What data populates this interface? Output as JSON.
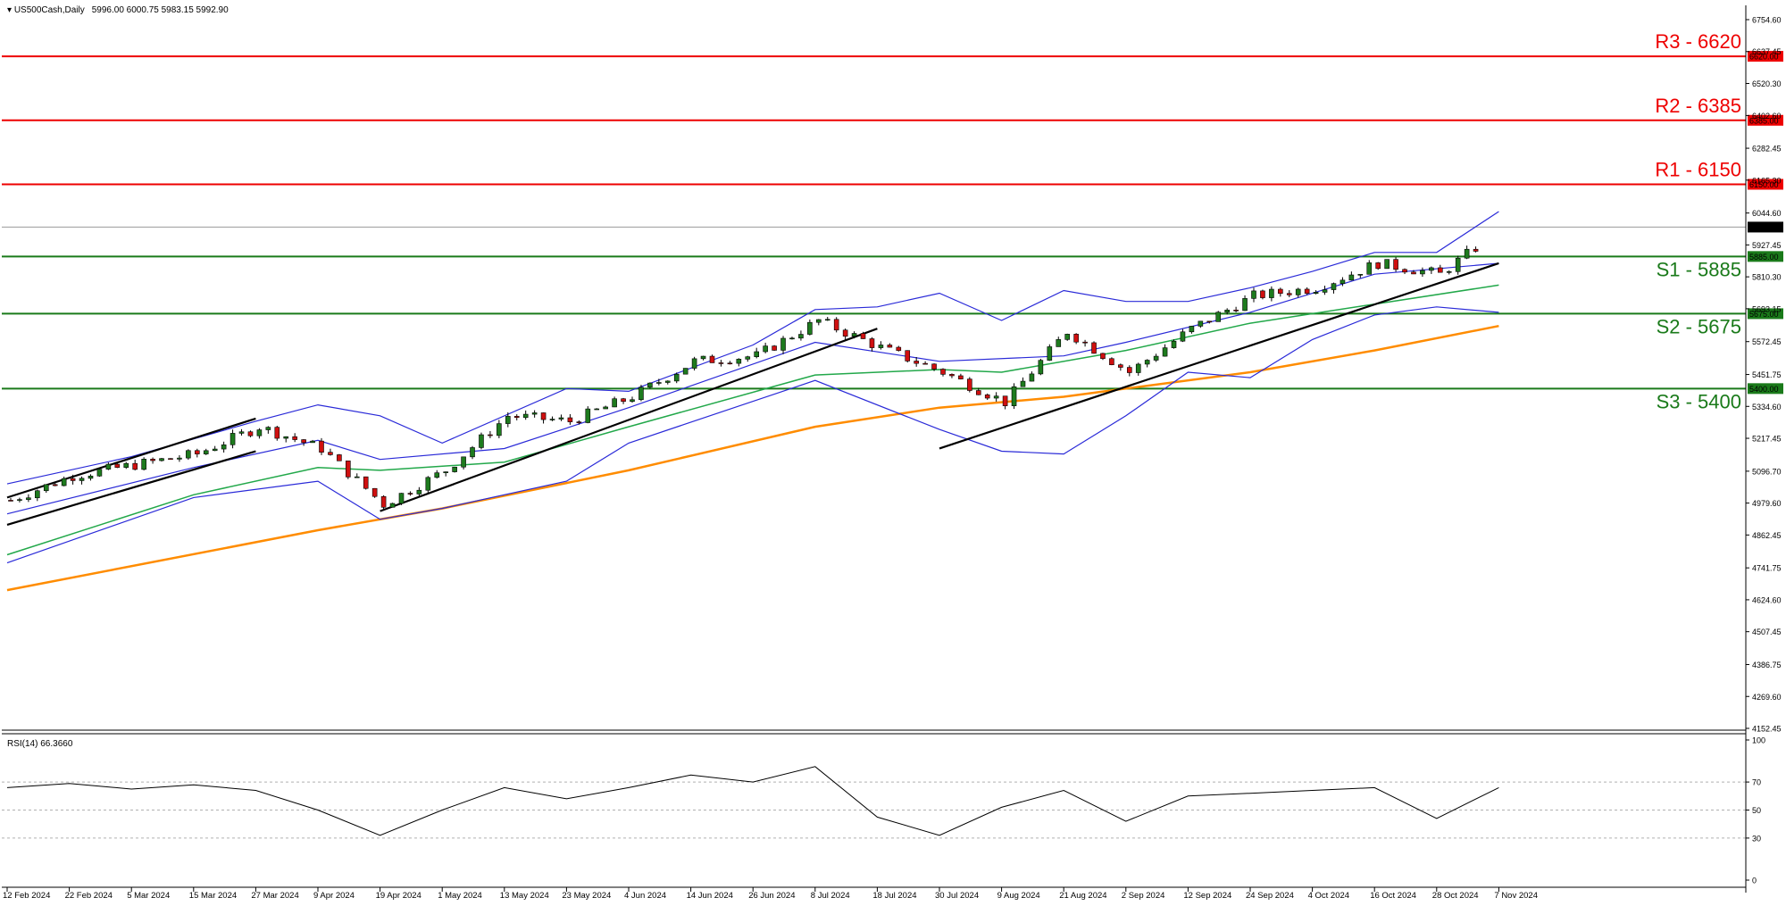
{
  "header": {
    "symbol_line": "US500Cash,Daily",
    "ohlc": "5996.00 6000.75 5983.15 5992.90"
  },
  "rsi_label": "RSI(14) 66.3660",
  "colors": {
    "candle_up": "#1e7b1e",
    "candle_down": "#d01010",
    "bb": "#2a2ad8",
    "ma50": "#22a84a",
    "ma200": "#ff8c00",
    "resistance": "#ee0000",
    "support": "#1a7a1a",
    "trend": "#000000",
    "rsi": "#000000"
  },
  "chart_data": {
    "type": "candlestick",
    "instrument": "US500Cash",
    "timeframe": "Daily",
    "last_price": 5992.9,
    "y_range": [
      4152.45,
      6754.6
    ],
    "y_ticks": [
      "6754.60",
      "6637.45",
      "6520.30",
      "6402.60",
      "6282.45",
      "6165.30",
      "6044.60",
      "5927.45",
      "5810.30",
      "5693.15",
      "5572.45",
      "5451.75",
      "5334.60",
      "5217.45",
      "5096.70",
      "4979.60",
      "4862.45",
      "4741.75",
      "4624.60",
      "4507.45",
      "4386.75",
      "4269.60",
      "4152.45"
    ],
    "x_labels": [
      "12 Feb 2024",
      "22 Feb 2024",
      "5 Mar 2024",
      "15 Mar 2024",
      "27 Mar 2024",
      "9 Apr 2024",
      "19 Apr 2024",
      "1 May 2024",
      "13 May 2024",
      "23 May 2024",
      "4 Jun 2024",
      "14 Jun 2024",
      "26 Jun 2024",
      "8 Jul 2024",
      "18 Jul 2024",
      "30 Jul 2024",
      "9 Aug 2024",
      "21 Aug 2024",
      "2 Sep 2024",
      "12 Sep 2024",
      "24 Sep 2024",
      "4 Oct 2024",
      "16 Oct 2024",
      "28 Oct 2024",
      "7 Nov 2024"
    ],
    "close_path": [
      {
        "d": "12 Feb 2024",
        "c": 4990
      },
      {
        "d": "22 Feb 2024",
        "c": 5080
      },
      {
        "d": "5 Mar 2024",
        "c": 5120
      },
      {
        "d": "15 Mar 2024",
        "c": 5160
      },
      {
        "d": "27 Mar 2024",
        "c": 5260
      },
      {
        "d": "9 Apr 2024",
        "c": 5180
      },
      {
        "d": "19 Apr 2024",
        "c": 4975
      },
      {
        "d": "1 May 2024",
        "c": 5100
      },
      {
        "d": "13 May 2024",
        "c": 5300
      },
      {
        "d": "23 May 2024",
        "c": 5280
      },
      {
        "d": "4 Jun 2024",
        "c": 5370
      },
      {
        "d": "14 Jun 2024",
        "c": 5500
      },
      {
        "d": "26 Jun 2024",
        "c": 5520
      },
      {
        "d": "8 Jul 2024",
        "c": 5650
      },
      {
        "d": "18 Jul 2024",
        "c": 5550
      },
      {
        "d": "30 Jul 2024",
        "c": 5460
      },
      {
        "d": "9 Aug 2024",
        "c": 5350
      },
      {
        "d": "21 Aug 2024",
        "c": 5610
      },
      {
        "d": "2 Sep 2024",
        "c": 5460
      },
      {
        "d": "12 Sep 2024",
        "c": 5620
      },
      {
        "d": "24 Sep 2024",
        "c": 5740
      },
      {
        "d": "4 Oct 2024",
        "c": 5770
      },
      {
        "d": "16 Oct 2024",
        "c": 5860
      },
      {
        "d": "28 Oct 2024",
        "c": 5820
      },
      {
        "d": "7 Nov 2024",
        "c": 5990
      }
    ],
    "levels": [
      {
        "name": "R3",
        "price": 6620,
        "label": "R3 - 6620",
        "tag": "6620.00",
        "kind": "resistance"
      },
      {
        "name": "R2",
        "price": 6385,
        "label": "R2 - 6385",
        "tag": "6385.00",
        "kind": "resistance"
      },
      {
        "name": "R1",
        "price": 6150,
        "label": "R1 - 6150",
        "tag": "6150.00",
        "kind": "resistance"
      },
      {
        "name": "S1",
        "price": 5885,
        "label": "S1 - 5885",
        "tag": "5885.00",
        "kind": "support"
      },
      {
        "name": "S2",
        "price": 5675,
        "label": "S2 - 5675",
        "tag": "5675.00",
        "kind": "support"
      },
      {
        "name": "S3",
        "price": 5400,
        "label": "S3 - 5400",
        "tag": "5400.00",
        "kind": "support"
      }
    ],
    "last_price_tag": "5992.90",
    "ma200": [
      {
        "d": "12 Feb 2024",
        "v": 4660
      },
      {
        "d": "9 Apr 2024",
        "v": 4880
      },
      {
        "d": "1 May 2024",
        "v": 4960
      },
      {
        "d": "4 Jun 2024",
        "v": 5100
      },
      {
        "d": "8 Jul 2024",
        "v": 5260
      },
      {
        "d": "30 Jul 2024",
        "v": 5330
      },
      {
        "d": "21 Aug 2024",
        "v": 5370
      },
      {
        "d": "2 Sep 2024",
        "v": 5400
      },
      {
        "d": "24 Sep 2024",
        "v": 5460
      },
      {
        "d": "16 Oct 2024",
        "v": 5540
      },
      {
        "d": "7 Nov 2024",
        "v": 5630
      }
    ],
    "ma50": [
      {
        "d": "12 Feb 2024",
        "v": 4790
      },
      {
        "d": "15 Mar 2024",
        "v": 5010
      },
      {
        "d": "9 Apr 2024",
        "v": 5110
      },
      {
        "d": "19 Apr 2024",
        "v": 5100
      },
      {
        "d": "13 May 2024",
        "v": 5130
      },
      {
        "d": "4 Jun 2024",
        "v": 5260
      },
      {
        "d": "8 Jul 2024",
        "v": 5450
      },
      {
        "d": "30 Jul 2024",
        "v": 5470
      },
      {
        "d": "9 Aug 2024",
        "v": 5460
      },
      {
        "d": "2 Sep 2024",
        "v": 5540
      },
      {
        "d": "24 Sep 2024",
        "v": 5640
      },
      {
        "d": "16 Oct 2024",
        "v": 5710
      },
      {
        "d": "7 Nov 2024",
        "v": 5780
      }
    ],
    "bb_upper": [
      {
        "d": "12 Feb 2024",
        "v": 5050
      },
      {
        "d": "5 Mar 2024",
        "v": 5150
      },
      {
        "d": "27 Mar 2024",
        "v": 5280
      },
      {
        "d": "9 Apr 2024",
        "v": 5340
      },
      {
        "d": "19 Apr 2024",
        "v": 5300
      },
      {
        "d": "1 May 2024",
        "v": 5200
      },
      {
        "d": "23 May 2024",
        "v": 5400
      },
      {
        "d": "4 Jun 2024",
        "v": 5390
      },
      {
        "d": "26 Jun 2024",
        "v": 5560
      },
      {
        "d": "8 Jul 2024",
        "v": 5690
      },
      {
        "d": "18 Jul 2024",
        "v": 5700
      },
      {
        "d": "30 Jul 2024",
        "v": 5750
      },
      {
        "d": "9 Aug 2024",
        "v": 5650
      },
      {
        "d": "21 Aug 2024",
        "v": 5760
      },
      {
        "d": "2 Sep 2024",
        "v": 5720
      },
      {
        "d": "12 Sep 2024",
        "v": 5720
      },
      {
        "d": "24 Sep 2024",
        "v": 5770
      },
      {
        "d": "4 Oct 2024",
        "v": 5830
      },
      {
        "d": "16 Oct 2024",
        "v": 5900
      },
      {
        "d": "28 Oct 2024",
        "v": 5900
      },
      {
        "d": "7 Nov 2024",
        "v": 6050
      }
    ],
    "bb_middle": [
      {
        "d": "12 Feb 2024",
        "v": 4940
      },
      {
        "d": "15 Mar 2024",
        "v": 5110
      },
      {
        "d": "9 Apr 2024",
        "v": 5210
      },
      {
        "d": "19 Apr 2024",
        "v": 5140
      },
      {
        "d": "13 May 2024",
        "v": 5180
      },
      {
        "d": "4 Jun 2024",
        "v": 5330
      },
      {
        "d": "8 Jul 2024",
        "v": 5570
      },
      {
        "d": "30 Jul 2024",
        "v": 5500
      },
      {
        "d": "21 Aug 2024",
        "v": 5520
      },
      {
        "d": "2 Sep 2024",
        "v": 5570
      },
      {
        "d": "24 Sep 2024",
        "v": 5680
      },
      {
        "d": "16 Oct 2024",
        "v": 5820
      },
      {
        "d": "7 Nov 2024",
        "v": 5860
      }
    ],
    "bb_lower": [
      {
        "d": "12 Feb 2024",
        "v": 4760
      },
      {
        "d": "15 Mar 2024",
        "v": 5000
      },
      {
        "d": "9 Apr 2024",
        "v": 5060
      },
      {
        "d": "19 Apr 2024",
        "v": 4920
      },
      {
        "d": "1 May 2024",
        "v": 4960
      },
      {
        "d": "23 May 2024",
        "v": 5060
      },
      {
        "d": "4 Jun 2024",
        "v": 5200
      },
      {
        "d": "8 Jul 2024",
        "v": 5430
      },
      {
        "d": "30 Jul 2024",
        "v": 5250
      },
      {
        "d": "9 Aug 2024",
        "v": 5170
      },
      {
        "d": "21 Aug 2024",
        "v": 5160
      },
      {
        "d": "2 Sep 2024",
        "v": 5300
      },
      {
        "d": "12 Sep 2024",
        "v": 5460
      },
      {
        "d": "24 Sep 2024",
        "v": 5440
      },
      {
        "d": "4 Oct 2024",
        "v": 5580
      },
      {
        "d": "16 Oct 2024",
        "v": 5670
      },
      {
        "d": "28 Oct 2024",
        "v": 5700
      },
      {
        "d": "7 Nov 2024",
        "v": 5680
      }
    ],
    "trendlines": [
      {
        "from": {
          "d": "12 Feb 2024",
          "v": 5000
        },
        "to": {
          "d": "27 Mar 2024",
          "v": 5290
        }
      },
      {
        "from": {
          "d": "12 Feb 2024",
          "v": 4900
        },
        "to": {
          "d": "27 Mar 2024",
          "v": 5170
        }
      },
      {
        "from": {
          "d": "19 Apr 2024",
          "v": 4950
        },
        "to": {
          "d": "18 Jul 2024",
          "v": 5620
        }
      },
      {
        "from": {
          "d": "30 Jul 2024",
          "v": 5180
        },
        "to": {
          "d": "7 Nov 2024",
          "v": 5860
        }
      }
    ],
    "rsi": {
      "period": 14,
      "current": 66.366,
      "y_ticks": [
        0,
        30,
        50,
        70,
        100
      ],
      "dashed_levels": [
        30,
        50,
        70
      ],
      "values": [
        {
          "d": "12 Feb 2024",
          "v": 66
        },
        {
          "d": "22 Feb 2024",
          "v": 69
        },
        {
          "d": "5 Mar 2024",
          "v": 65
        },
        {
          "d": "15 Mar 2024",
          "v": 68
        },
        {
          "d": "27 Mar 2024",
          "v": 64
        },
        {
          "d": "9 Apr 2024",
          "v": 50
        },
        {
          "d": "19 Apr 2024",
          "v": 32
        },
        {
          "d": "1 May 2024",
          "v": 50
        },
        {
          "d": "13 May 2024",
          "v": 66
        },
        {
          "d": "23 May 2024",
          "v": 58
        },
        {
          "d": "4 Jun 2024",
          "v": 66
        },
        {
          "d": "14 Jun 2024",
          "v": 75
        },
        {
          "d": "26 Jun 2024",
          "v": 70
        },
        {
          "d": "8 Jul 2024",
          "v": 81
        },
        {
          "d": "18 Jul 2024",
          "v": 45
        },
        {
          "d": "30 Jul 2024",
          "v": 32
        },
        {
          "d": "9 Aug 2024",
          "v": 52
        },
        {
          "d": "21 Aug 2024",
          "v": 64
        },
        {
          "d": "2 Sep 2024",
          "v": 42
        },
        {
          "d": "12 Sep 2024",
          "v": 60
        },
        {
          "d": "24 Sep 2024",
          "v": 62
        },
        {
          "d": "4 Oct 2024",
          "v": 64
        },
        {
          "d": "16 Oct 2024",
          "v": 66
        },
        {
          "d": "28 Oct 2024",
          "v": 44
        },
        {
          "d": "7 Nov 2024",
          "v": 66
        }
      ]
    }
  }
}
